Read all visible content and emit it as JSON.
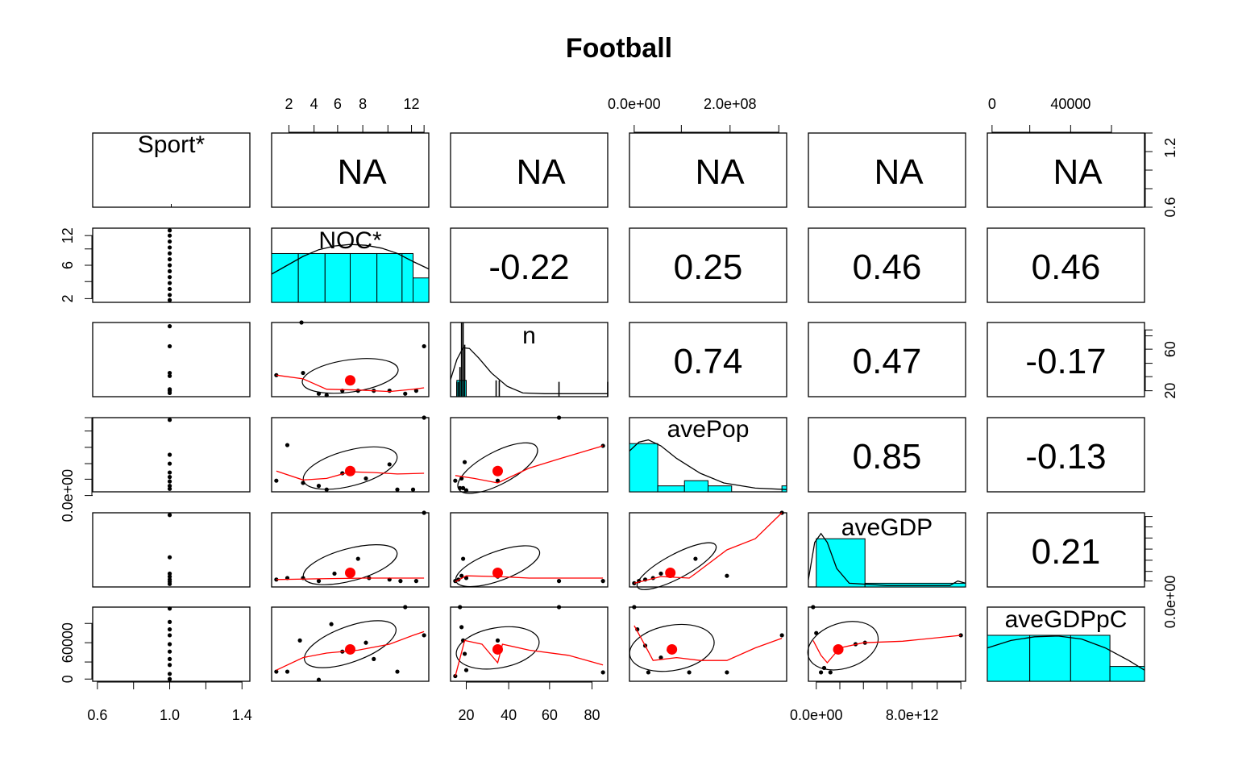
{
  "chart_data": {
    "type": "scatter",
    "title": "Football",
    "variables": [
      "Sport*",
      "NOC*",
      "n",
      "avePop",
      "aveGDP",
      "aveGDPpC"
    ],
    "correlations": {
      "row1": [
        "NA",
        "NA",
        "NA",
        "NA",
        "NA"
      ],
      "row2": [
        "-0.22",
        "0.25",
        "0.46",
        "0.46"
      ],
      "row3": [
        "0.74",
        "0.47",
        "-0.17"
      ],
      "row4": [
        "0.85",
        "-0.13"
      ],
      "row5": [
        "0.21"
      ]
    },
    "axes": {
      "top_NOC": [
        "2",
        "4",
        "6",
        "8",
        "12"
      ],
      "top_avePop": [
        "0.0e+00",
        "2.0e+08"
      ],
      "top_aveGDPpC": [
        "0",
        "40000"
      ],
      "bottom_Sport": [
        "0.6",
        "1.0",
        "1.4"
      ],
      "bottom_n": [
        "20",
        "40",
        "60",
        "80"
      ],
      "bottom_aveGDP": [
        "0.0e+00",
        "8.0e+12"
      ],
      "left_NOC": [
        "2",
        "6",
        "12"
      ],
      "left_avePop": [
        "0.0e+00"
      ],
      "left_aveGDPpC": [
        "0",
        "60000"
      ],
      "right_Sport": [
        "0.6",
        "1.2"
      ],
      "right_n": [
        "20",
        "60"
      ],
      "right_aveGDP": [
        "0.0e+00"
      ]
    },
    "data": {
      "NOC": [
        1,
        2,
        3,
        4,
        5,
        6,
        7,
        8,
        9,
        10,
        11,
        12,
        13
      ],
      "n": [
        13,
        14,
        14,
        15,
        15,
        16,
        16,
        16,
        17,
        34,
        35,
        64,
        87
      ],
      "avePop": [
        5000000,
        20000000,
        60000000,
        80000000,
        1000000,
        130000000,
        10000000,
        45000000,
        3000000,
        80000000,
        2000000,
        320000000,
        15000000
      ],
      "aveGDP": [
        200000000000.0,
        500000000000.0,
        1000000000000.0,
        2000000000000.0,
        300000000000.0,
        16000000000000.0,
        4000000000000.0,
        700000000000.0,
        6000000000000.0,
        500000000000.0,
        200000000000.0,
        1800000000000.0,
        100000000000.0
      ],
      "aveGDPpC": [
        12000,
        10000,
        55000,
        38000,
        2000,
        60000,
        72000,
        28000,
        90000,
        15000,
        65000,
        70000,
        48000
      ]
    }
  }
}
